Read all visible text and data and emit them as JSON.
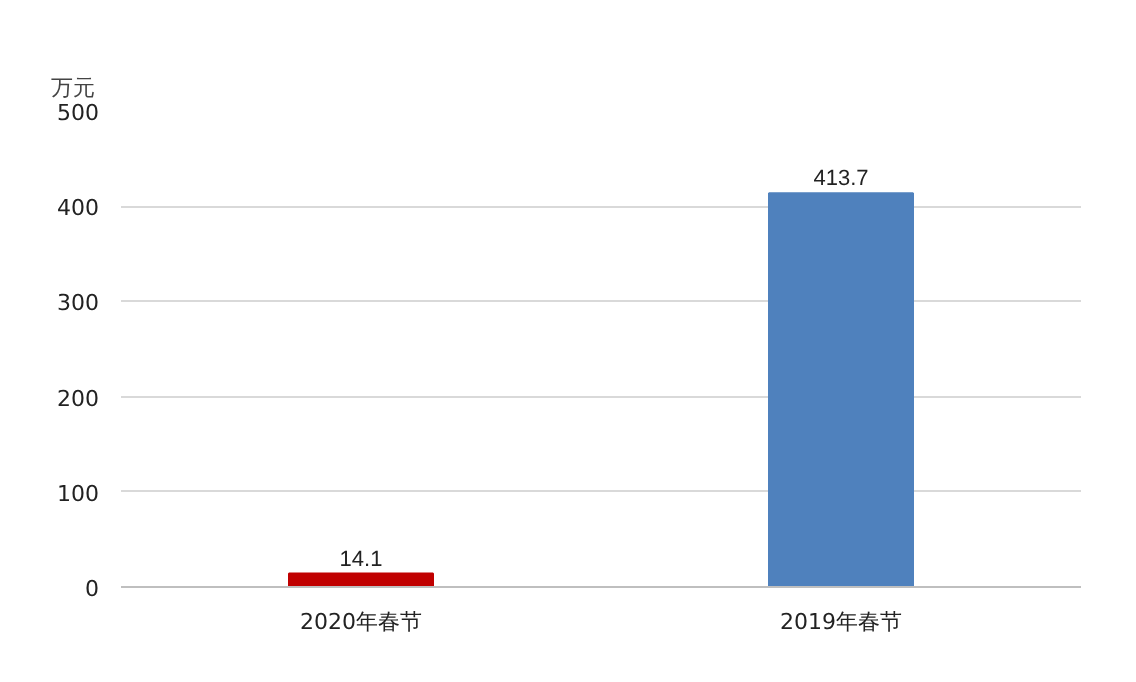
{
  "chart_data": {
    "type": "bar",
    "ylabel": "万元",
    "categories": [
      "2020年春节",
      "2019年春节"
    ],
    "values": [
      14.1,
      413.7
    ],
    "colors": [
      "#c00000",
      "#4f81bd"
    ],
    "ylim": [
      0,
      500
    ],
    "yticks": [
      0,
      100,
      200,
      300,
      400,
      500
    ],
    "grid": "y",
    "data_labels": true
  }
}
